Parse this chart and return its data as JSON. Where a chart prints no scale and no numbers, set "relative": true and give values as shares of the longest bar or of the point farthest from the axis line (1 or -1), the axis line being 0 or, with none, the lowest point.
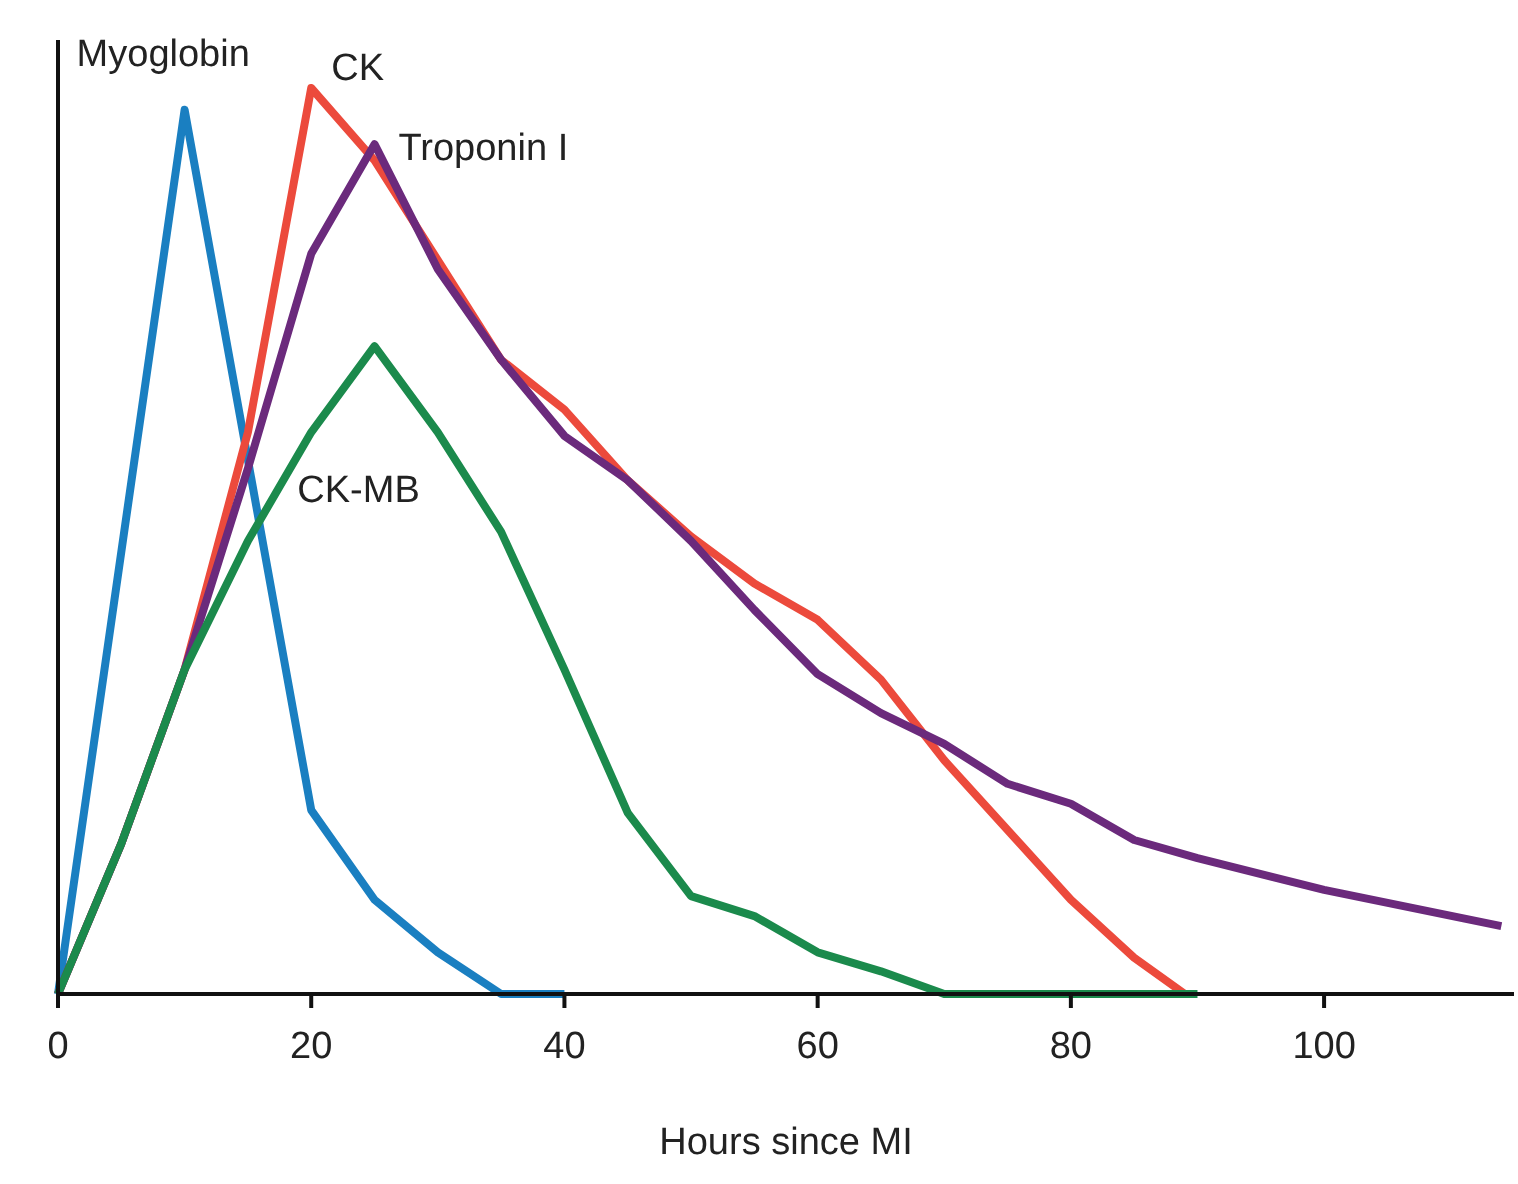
{
  "chart_data": {
    "type": "line",
    "relative": true,
    "xlabel": "Hours since MI",
    "xlim": [
      0,
      115
    ],
    "xticks": [
      0,
      20,
      40,
      60,
      80,
      100
    ],
    "grid": false,
    "marker": "none",
    "line_style": "solid",
    "series": [
      {
        "name": "Myoglobin",
        "color": "#1a7fc1",
        "x": [
          0,
          10,
          20,
          25,
          30,
          35,
          40
        ],
        "values": [
          0,
          0.976,
          0.203,
          0.104,
          0.046,
          0,
          0
        ]
      },
      {
        "name": "CK",
        "color": "#ec4a3c",
        "x": [
          0,
          5,
          10,
          15,
          20,
          25,
          30,
          35,
          40,
          45,
          50,
          55,
          60,
          65,
          70,
          75,
          80,
          85,
          89
        ],
        "values": [
          0,
          0.166,
          0.358,
          0.62,
          1,
          0.92,
          0.81,
          0.7,
          0.645,
          0.567,
          0.505,
          0.453,
          0.413,
          0.347,
          0.258,
          0.181,
          0.104,
          0.04,
          0
        ]
      },
      {
        "name": "Troponin I",
        "color": "#6b2a7c",
        "x": [
          0,
          5,
          10,
          15,
          20,
          25,
          30,
          35,
          40,
          45,
          50,
          55,
          60,
          65,
          70,
          75,
          80,
          85,
          90,
          100,
          114
        ],
        "values": [
          0,
          0.166,
          0.358,
          0.58,
          0.817,
          0.938,
          0.8,
          0.7,
          0.616,
          0.567,
          0.5,
          0.424,
          0.353,
          0.31,
          0.276,
          0.232,
          0.21,
          0.17,
          0.15,
          0.115,
          0.075
        ]
      },
      {
        "name": "CK-MB",
        "color": "#1b8a4c",
        "x": [
          0,
          5,
          10,
          15,
          20,
          25,
          30,
          35,
          40,
          45,
          50,
          55,
          60,
          65,
          70,
          80,
          90
        ],
        "values": [
          0,
          0.166,
          0.358,
          0.5,
          0.62,
          0.715,
          0.62,
          0.51,
          0.358,
          0.2,
          0.108,
          0.086,
          0.046,
          0.025,
          0,
          0,
          0
        ]
      }
    ]
  }
}
